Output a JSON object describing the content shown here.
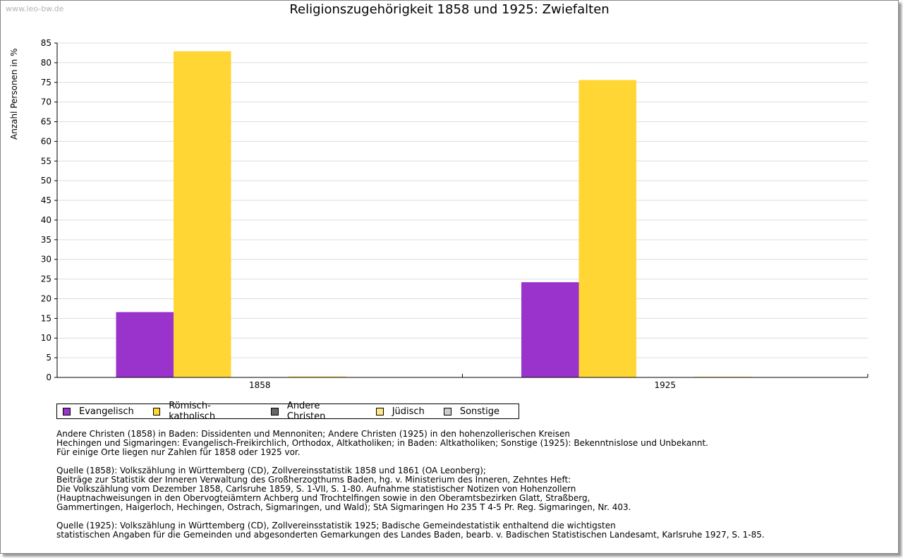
{
  "watermark": "www.leo-bw.de",
  "chart_data": {
    "type": "bar",
    "title": "Religionszugehörigkeit 1858 und 1925: Zwiefalten",
    "ylabel": "Anzahl Personen in %",
    "xlabel": "",
    "categories": [
      "1858",
      "1925"
    ],
    "ylim": [
      0,
      85
    ],
    "yticks": [
      0,
      5,
      10,
      15,
      20,
      25,
      30,
      35,
      40,
      45,
      50,
      55,
      60,
      65,
      70,
      75,
      80,
      85
    ],
    "grid": true,
    "legend_position": "bottom",
    "series": [
      {
        "name": "Evangelisch",
        "color": "#9933cc",
        "values": [
          16.6,
          24.2
        ]
      },
      {
        "name": "Römisch-katholisch",
        "color": "#ffd633",
        "values": [
          82.9,
          75.6
        ]
      },
      {
        "name": "Andere Christen",
        "color": "#666666",
        "values": [
          0,
          0
        ]
      },
      {
        "name": "Jüdisch",
        "color": "#ffe680",
        "values": [
          0.3,
          0.2
        ]
      },
      {
        "name": "Sonstige",
        "color": "#cccccc",
        "values": [
          0,
          0
        ]
      }
    ]
  },
  "notes": [
    "Andere Christen (1858) in Baden: Dissidenten und Mennoniten; Andere Christen (1925) in den hohenzollerischen Kreisen\nHechingen und Sigmaringen: Evangelisch-Freikirchlich, Orthodox, Altkatholiken; in Baden: Altkatholiken; Sonstige (1925): Bekenntnislose und Unbekannt.\nFür einige Orte liegen nur Zahlen für 1858 oder 1925 vor.",
    "Quelle (1858): Volkszählung in Württemberg (CD), Zollvereinsstatistik 1858 und 1861 (OA Leonberg);\nBeiträge zur Statistik der Inneren Verwaltung des Großherzogthums Baden, hg. v. Ministerium des Inneren, Zehntes Heft:\nDie Volkszählung vom Dezember 1858, Carlsruhe 1859, S. 1-VII, S. 1-80. Aufnahme statistischer Notizen von Hohenzollern\n(Hauptnachweisungen in den Obervogteiämtern Achberg und Trochtelfingen sowie in den Oberamtsbezirken Glatt, Straßberg,\nGammertingen, Haigerloch, Hechingen, Ostrach, Sigmaringen, und Wald); StA Sigmaringen Ho 235 T 4-5 Pr. Reg. Sigmaringen, Nr. 403.",
    "Quelle (1925): Volkszählung in Württemberg (CD), Zollvereinsstatistik 1925; Badische Gemeindestatistik enthaltend die wichtigsten\nstatistischen Angaben für die Gemeinden und abgesonderten Gemarkungen des Landes Baden, bearb. v. Badischen Statistischen Landesamt, Karlsruhe 1927, S. 1-85."
  ]
}
